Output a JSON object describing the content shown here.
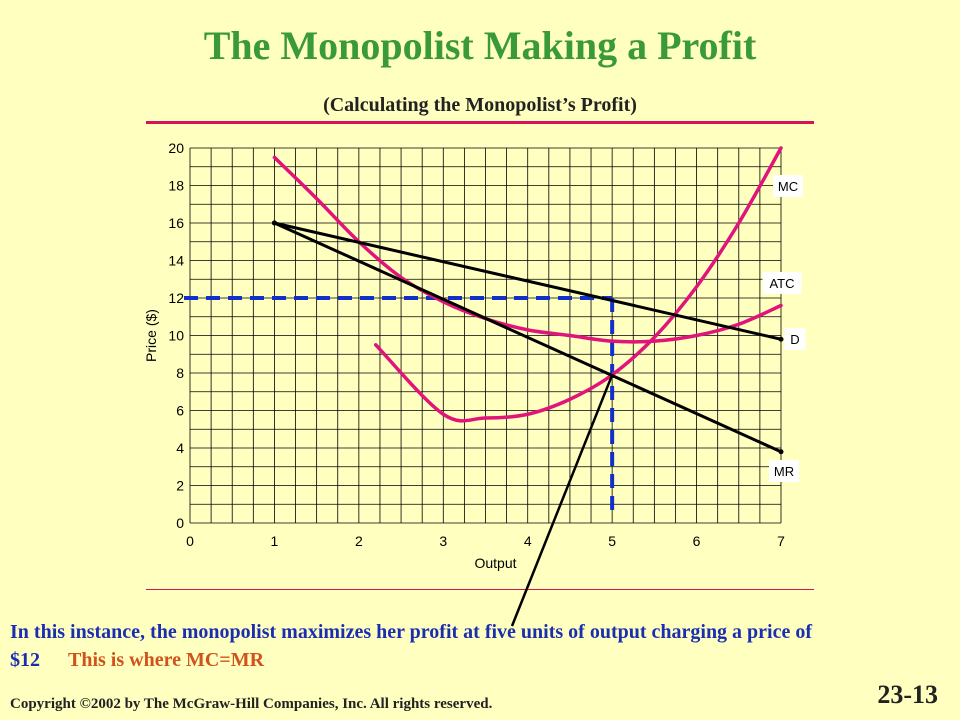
{
  "slide": {
    "title": "The Monopolist Making a Profit",
    "subtitle": "(Calculating the Monopolist’s Profit)",
    "note_main": "In this instance, the monopolist maximizes her profit at five units of output charging a price of $12",
    "note_emphasis": "This is where MC=MR",
    "copyright_symbol": "©",
    "copyright_text": "2002 by The McGraw-Hill Companies, Inc.  All rights reserved.",
    "copyright_prefix": "Copyright ",
    "slide_number": "23-13"
  },
  "colors": {
    "background": "#ffffc0",
    "title": "#3a9a3a",
    "curve_pink": "#e0147a",
    "curve_black": "#000000",
    "dashed_blue": "#1030c8",
    "note_blue": "#1a2fb0",
    "note_orange": "#d2521c",
    "rule": "#d4145a"
  },
  "chart_data": {
    "type": "line",
    "xlabel": "Output",
    "ylabel": "Price ($)",
    "xlim": [
      0,
      7
    ],
    "ylim": [
      0,
      20
    ],
    "x_ticks": [
      "0",
      "1",
      "2",
      "3",
      "4",
      "5",
      "6",
      "7"
    ],
    "y_ticks": [
      "0",
      "2",
      "4",
      "6",
      "8",
      "10",
      "12",
      "14",
      "16",
      "18",
      "20"
    ],
    "grid": true,
    "series": [
      {
        "name": "MC",
        "color": "pink",
        "x": [
          2.2,
          3.0,
          3.5,
          4.0,
          4.5,
          5.0,
          5.5,
          6.0,
          6.5,
          7.0
        ],
        "y": [
          9.5,
          5.8,
          5.6,
          5.8,
          6.6,
          7.9,
          9.9,
          12.6,
          16.0,
          20.0
        ]
      },
      {
        "name": "ATC",
        "color": "pink",
        "x": [
          1.0,
          1.5,
          2.0,
          2.5,
          3.0,
          3.5,
          4.0,
          4.5,
          5.0,
          5.5,
          6.0,
          6.5,
          7.0
        ],
        "y": [
          19.5,
          17.3,
          15.0,
          13.1,
          11.8,
          10.9,
          10.3,
          10.0,
          9.7,
          9.7,
          10.0,
          10.6,
          11.6
        ]
      },
      {
        "name": "D",
        "color": "black",
        "x": [
          1.0,
          7.0
        ],
        "y": [
          16.0,
          9.8
        ]
      },
      {
        "name": "MR",
        "color": "black",
        "x": [
          1.0,
          7.0
        ],
        "y": [
          16.0,
          3.8
        ]
      }
    ],
    "annotations": {
      "dashed_profit_box": {
        "x": 5,
        "y": 12
      },
      "arrow_to_intersection": {
        "x": 5,
        "y": 8
      }
    }
  }
}
